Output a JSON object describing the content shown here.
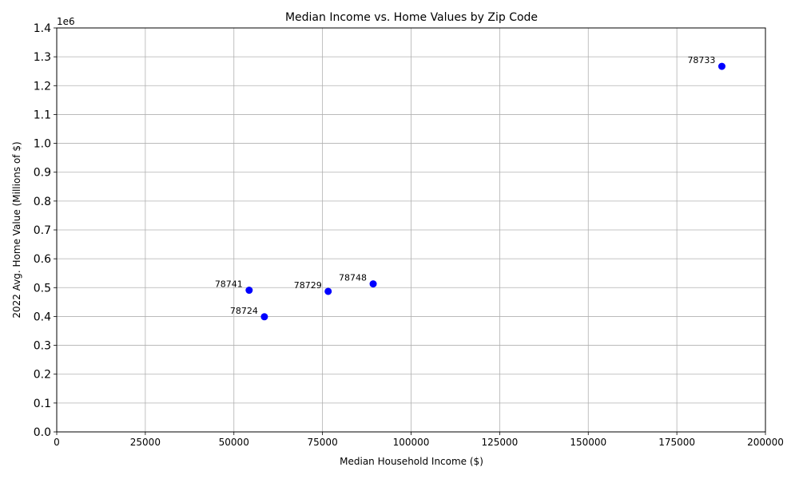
{
  "chart_data": {
    "type": "scatter",
    "title": "Median Income vs. Home Values by Zip Code",
    "xlabel": "Median Household Income ($)",
    "ylabel": "2022 Avg. Home Value (Millions of $)",
    "y_offset_label": "1e6",
    "xlim": [
      0,
      200000
    ],
    "ylim": [
      0,
      1400000
    ],
    "x_ticks": [
      0,
      25000,
      50000,
      75000,
      100000,
      125000,
      150000,
      175000,
      200000
    ],
    "y_ticks": [
      0.0,
      0.1,
      0.2,
      0.3,
      0.4,
      0.5,
      0.6,
      0.7,
      0.8,
      0.9,
      1.0,
      1.1,
      1.2,
      1.3,
      1.4
    ],
    "grid": true,
    "marker_color": "#0000ff",
    "points": [
      {
        "label": "78741",
        "x": 54300,
        "y": 491000
      },
      {
        "label": "78724",
        "x": 58600,
        "y": 399000
      },
      {
        "label": "78729",
        "x": 76600,
        "y": 487000
      },
      {
        "label": "78748",
        "x": 89300,
        "y": 513000
      },
      {
        "label": "78733",
        "x": 187700,
        "y": 1267000
      }
    ]
  }
}
